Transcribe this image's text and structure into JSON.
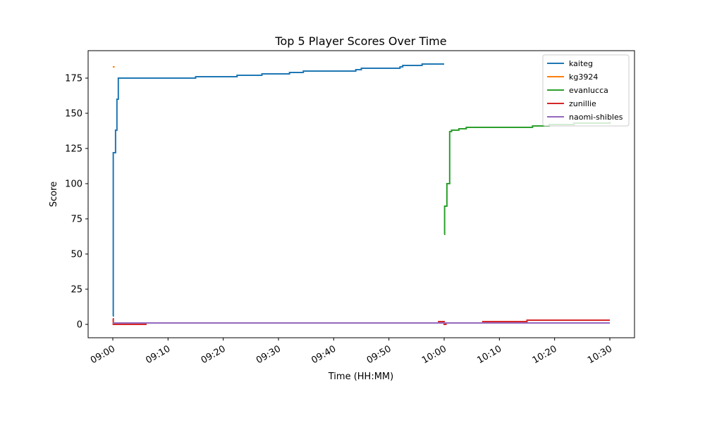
{
  "chart_data": {
    "type": "line",
    "drawstyle": "steps-post",
    "title": "Top 5 Player Scores Over Time",
    "xlabel": "Time (HH:MM)",
    "ylabel": "Score",
    "xlim": [
      "08:55:32",
      "10:34:28"
    ],
    "ylim": [
      -9.5,
      194.5
    ],
    "xticks": [
      "09:00",
      "09:10",
      "09:20",
      "09:30",
      "09:40",
      "09:50",
      "10:00",
      "10:10",
      "10:20",
      "10:30"
    ],
    "yticks": [
      0,
      25,
      50,
      75,
      100,
      125,
      150,
      175
    ],
    "legend": "upper right",
    "grid": false,
    "series": [
      {
        "name": "kaiteg",
        "color": "#1f77b4",
        "x": [
          "09:00:00",
          "09:00:05",
          "09:00:30",
          "09:00:45",
          "09:01:00",
          "09:15:00",
          "09:22:30",
          "09:27:00",
          "09:32:00",
          "09:34:30",
          "09:44:00",
          "09:45:00",
          "09:52:00",
          "09:52:30",
          "09:56:00",
          "10:00:00"
        ],
        "values": [
          6,
          122,
          138,
          160,
          175,
          176,
          177,
          178,
          179,
          180,
          181,
          182,
          183,
          184,
          185,
          185
        ]
      },
      {
        "name": "kg3924",
        "color": "#ff7f0e",
        "x": [
          "09:00:00",
          "09:00:20"
        ],
        "values": [
          183,
          183
        ]
      },
      {
        "name": "evanlucca",
        "color": "#2ca02c",
        "x": [
          "10:00:00",
          "10:00:05",
          "10:00:30",
          "10:01:00",
          "10:01:20",
          "10:02:40",
          "10:04:00",
          "10:16:00",
          "10:19:00",
          "10:23:30",
          "10:30:00"
        ],
        "values": [
          64,
          84,
          100,
          137,
          138,
          139,
          140,
          141,
          142,
          143,
          144
        ]
      },
      {
        "name": "zunillie",
        "color": "#d62728",
        "x": [
          "09:00:00",
          "09:00:05",
          "09:06:00",
          "09:59:00",
          "10:00:00",
          "10:00:20",
          "10:07:00",
          "10:15:00",
          "10:30:00"
        ],
        "values": [
          4,
          0,
          1,
          2,
          0,
          1,
          2,
          3,
          3
        ]
      },
      {
        "name": "naomi-shibles",
        "color": "#9467bd",
        "x": [
          "09:00:00",
          "10:30:00"
        ],
        "values": [
          1,
          1
        ]
      }
    ]
  }
}
